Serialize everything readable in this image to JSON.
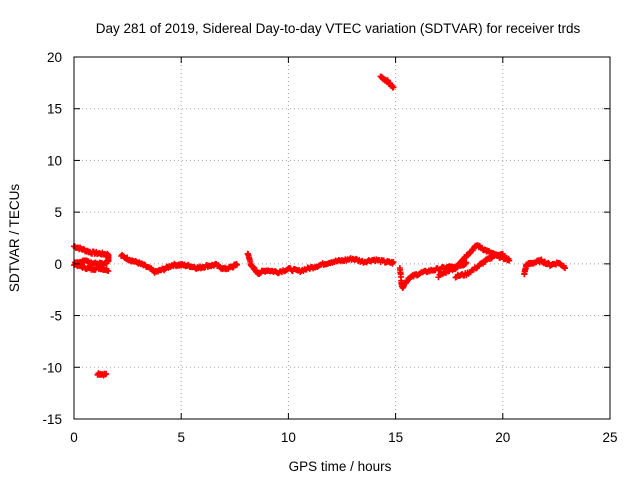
{
  "chart_data": {
    "type": "scatter",
    "title": "Day 281 of 2019, Sidereal Day-to-day VTEC variation (SDTVAR) for receiver trds",
    "xlabel": "GPS time / hours",
    "ylabel": "SDTVAR / TECUs",
    "xlim": [
      0,
      25
    ],
    "ylim": [
      -15,
      20
    ],
    "xticks": [
      0,
      5,
      10,
      15,
      20,
      25
    ],
    "yticks": [
      -15,
      -10,
      -5,
      0,
      5,
      10,
      15,
      20
    ],
    "grid": true,
    "legend": "none",
    "marker": "plus",
    "color": "#ff0000",
    "series": [
      {
        "name": "SDTVAR",
        "tracks": [
          [
            [
              0.0,
              1.7
            ],
            [
              0.4,
              1.4
            ],
            [
              0.8,
              1.1
            ],
            [
              1.2,
              1.0
            ],
            [
              1.6,
              0.9
            ],
            [
              1.6,
              0.2
            ],
            [
              1.2,
              0.0
            ],
            [
              0.8,
              0.1
            ],
            [
              0.4,
              0.3
            ],
            [
              0.0,
              0.0
            ],
            [
              0.4,
              -0.3
            ],
            [
              0.8,
              -0.5
            ],
            [
              1.2,
              -0.4
            ],
            [
              1.6,
              -0.6
            ]
          ],
          [
            [
              1.1,
              -10.6
            ],
            [
              1.5,
              -10.7
            ]
          ],
          [
            [
              2.2,
              0.8
            ],
            [
              2.6,
              0.4
            ],
            [
              3.0,
              0.1
            ],
            [
              3.4,
              -0.3
            ],
            [
              3.8,
              -0.8
            ],
            [
              4.2,
              -0.5
            ],
            [
              4.6,
              -0.1
            ],
            [
              5.0,
              -0.1
            ],
            [
              5.4,
              -0.2
            ],
            [
              5.8,
              -0.4
            ],
            [
              6.2,
              -0.2
            ],
            [
              6.6,
              -0.1
            ],
            [
              7.0,
              -0.5
            ],
            [
              7.4,
              -0.3
            ],
            [
              7.6,
              0.0
            ]
          ],
          [
            [
              8.1,
              1.0
            ],
            [
              8.3,
              -0.3
            ],
            [
              8.6,
              -0.9
            ],
            [
              9.0,
              -0.6
            ],
            [
              9.5,
              -0.8
            ],
            [
              10.0,
              -0.5
            ],
            [
              10.5,
              -0.7
            ],
            [
              11.0,
              -0.4
            ],
            [
              11.5,
              -0.1
            ],
            [
              12.0,
              0.2
            ],
            [
              12.5,
              0.3
            ],
            [
              13.0,
              0.5
            ],
            [
              13.5,
              0.2
            ],
            [
              14.0,
              0.4
            ],
            [
              14.5,
              0.2
            ],
            [
              14.9,
              0.1
            ]
          ],
          [
            [
              14.3,
              18.1
            ],
            [
              14.6,
              17.7
            ],
            [
              14.9,
              17.0
            ]
          ],
          [
            [
              15.2,
              -0.3
            ],
            [
              15.3,
              -2.3
            ],
            [
              15.6,
              -1.4
            ],
            [
              16.0,
              -1.0
            ],
            [
              16.5,
              -0.7
            ],
            [
              17.0,
              -0.5
            ],
            [
              17.5,
              -0.3
            ],
            [
              17.8,
              -0.4
            ],
            [
              18.1,
              0.4
            ],
            [
              18.4,
              1.0
            ],
            [
              18.8,
              1.8
            ],
            [
              19.2,
              1.3
            ],
            [
              19.6,
              0.9
            ],
            [
              20.0,
              0.6
            ],
            [
              20.3,
              0.4
            ]
          ],
          [
            [
              17.0,
              -1.2
            ],
            [
              17.5,
              -0.6
            ],
            [
              18.0,
              -0.2
            ],
            [
              18.3,
              0.1
            ]
          ],
          [
            [
              17.8,
              -1.2
            ],
            [
              18.3,
              -1.0
            ],
            [
              18.8,
              -0.3
            ],
            [
              19.2,
              0.3
            ],
            [
              19.6,
              0.8
            ],
            [
              20.0,
              0.9
            ]
          ],
          [
            [
              21.0,
              -1.0
            ],
            [
              21.1,
              -0.1
            ],
            [
              21.4,
              0.1
            ],
            [
              21.8,
              0.3
            ],
            [
              22.2,
              -0.1
            ],
            [
              22.6,
              0.1
            ],
            [
              22.9,
              -0.3
            ]
          ]
        ]
      }
    ]
  }
}
